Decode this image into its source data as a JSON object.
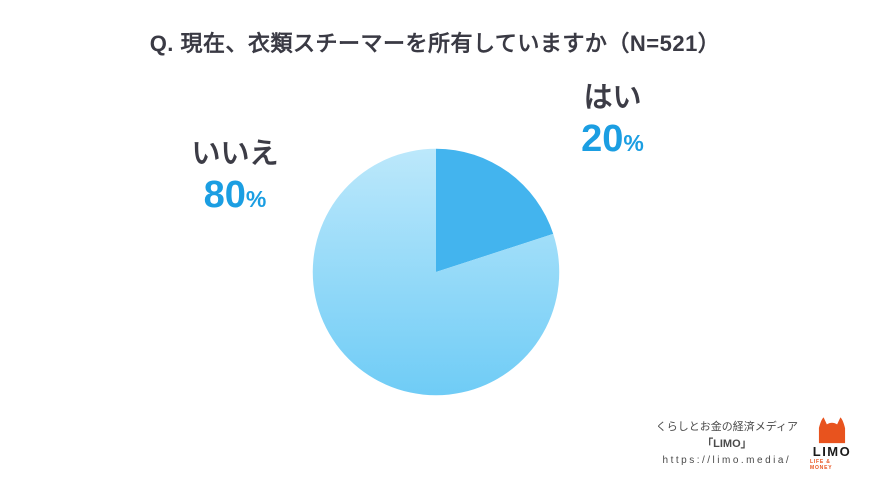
{
  "title": "Q. 現在、衣類スチーマーを所有していますか（N=521）",
  "chart_data": {
    "type": "pie",
    "title": "Q. 現在、衣類スチーマーを所有していますか（N=521）",
    "sample_size": "N=521",
    "start_angle_deg": 0,
    "direction": "clockwise",
    "legend_position": "labels-outside",
    "slices": [
      {
        "label": "はい",
        "value": 20,
        "unit": "%",
        "color": "#43b4ee"
      },
      {
        "label": "いいえ",
        "value": 80,
        "unit": "%",
        "color_top": "#bce8fb",
        "color_bottom": "#6fccf6"
      }
    ]
  },
  "colors": {
    "accent_blue": "#1b9ee2",
    "text_dark": "#3c3c46",
    "pie_yes": "#43b4ee",
    "pie_no_top": "#bce8fb",
    "pie_no_bottom": "#6fccf6",
    "logo_orange": "#e8531e"
  },
  "footer": {
    "tagline": "くらしとお金の経済メディア",
    "media_name": "「LIMO」",
    "url": "https://limo.media/",
    "logo_text": "LIMO",
    "logo_sub": "LIFE & MONEY"
  }
}
